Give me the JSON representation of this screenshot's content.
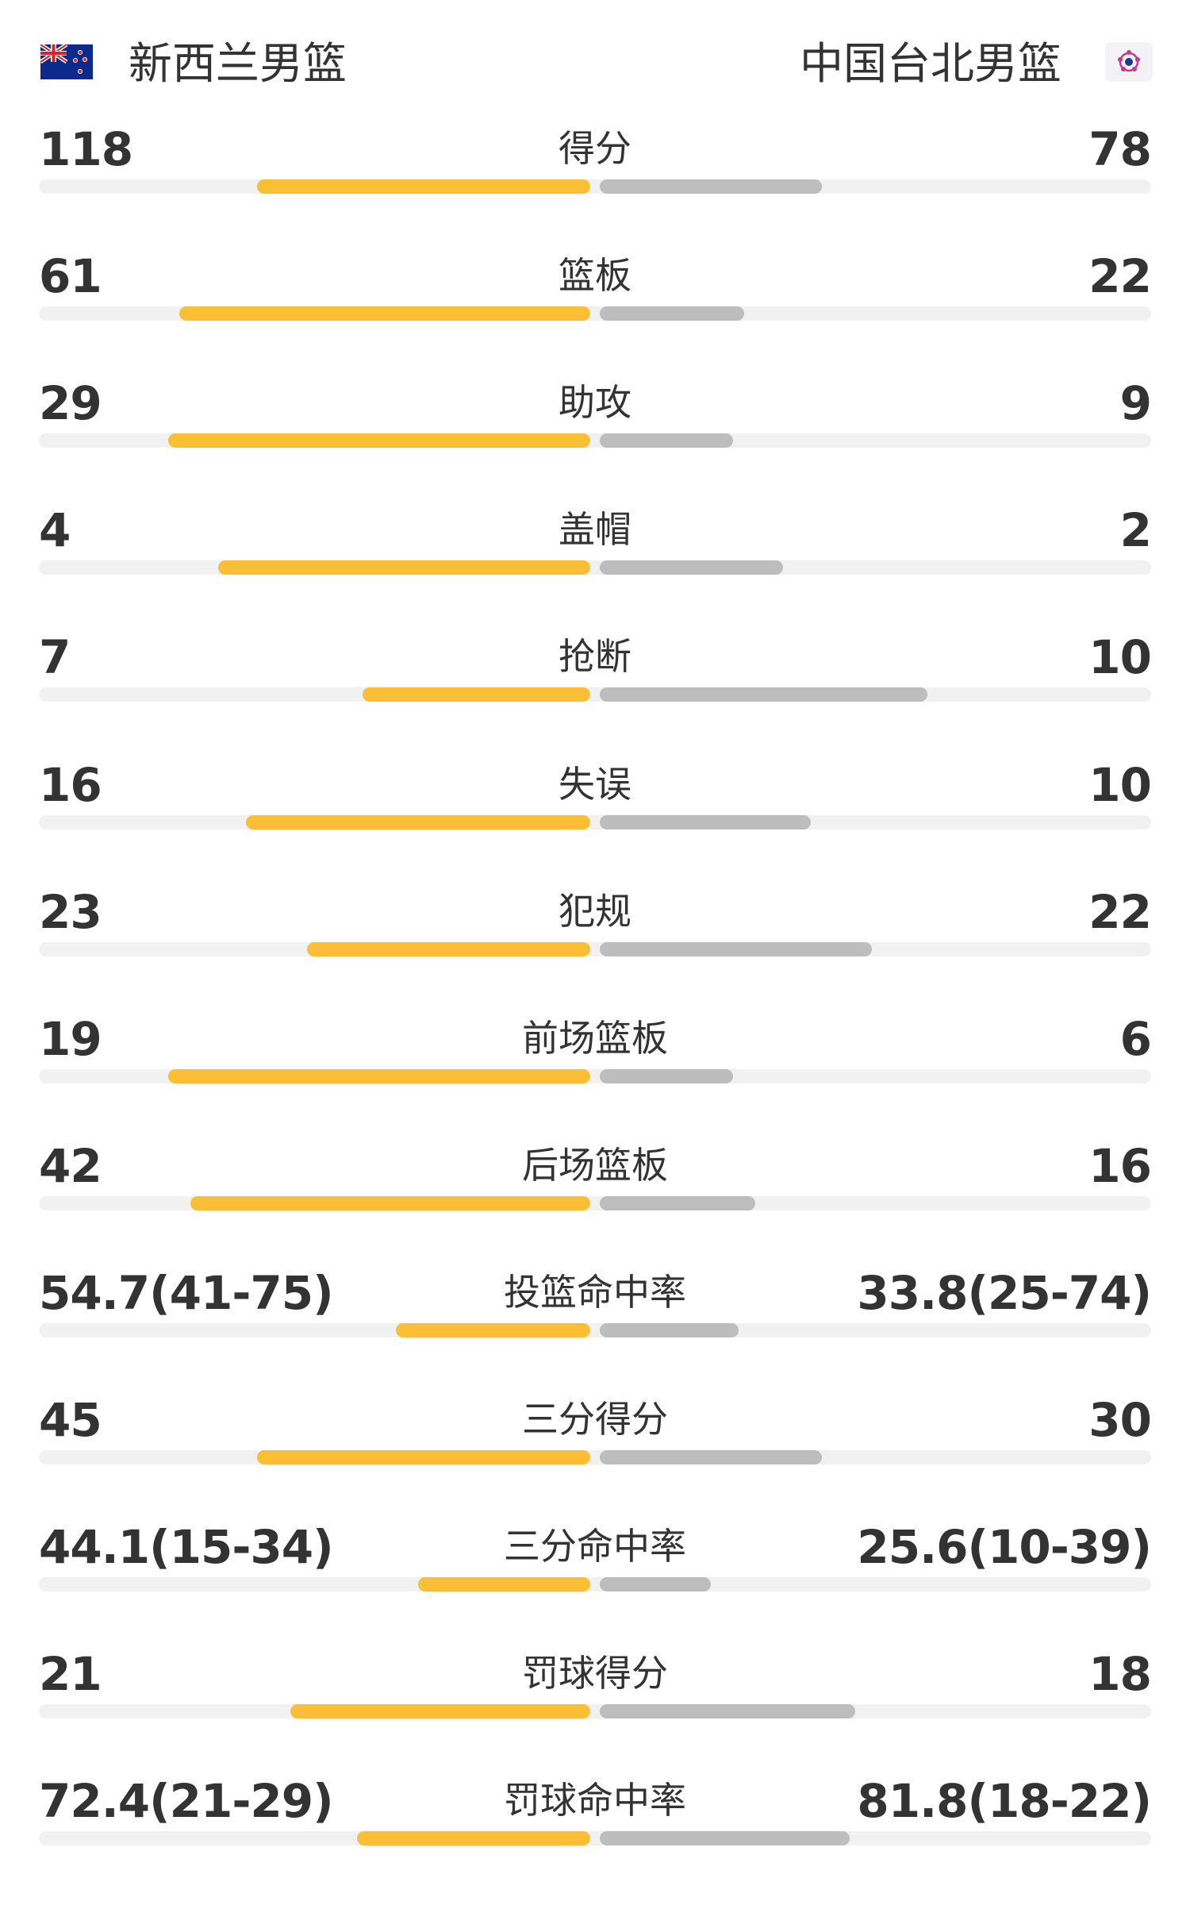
{
  "header": {
    "home_team": "新西兰男篮",
    "away_team": "中国台北男篮",
    "home_flag_icon": "new-zealand-flag-icon",
    "away_flag_icon": "chinese-taipei-flag-icon"
  },
  "colors": {
    "home_bar": "#fbbf36",
    "away_bar": "#bdbdbd",
    "track": "#f1f1f1",
    "text": "#333333"
  },
  "stats": [
    {
      "label": "得分",
      "home": "118",
      "away": "78",
      "home_share": 0.6,
      "away_share": 0.4
    },
    {
      "label": "篮板",
      "home": "61",
      "away": "22",
      "home_share": 0.74,
      "away_share": 0.26
    },
    {
      "label": "助攻",
      "home": "29",
      "away": "9",
      "home_share": 0.76,
      "away_share": 0.24
    },
    {
      "label": "盖帽",
      "home": "4",
      "away": "2",
      "home_share": 0.67,
      "away_share": 0.33
    },
    {
      "label": "抢断",
      "home": "7",
      "away": "10",
      "home_share": 0.41,
      "away_share": 0.59
    },
    {
      "label": "失误",
      "home": "16",
      "away": "10",
      "home_share": 0.62,
      "away_share": 0.38
    },
    {
      "label": "犯规",
      "home": "23",
      "away": "22",
      "home_share": 0.51,
      "away_share": 0.49
    },
    {
      "label": "前场篮板",
      "home": "19",
      "away": "6",
      "home_share": 0.76,
      "away_share": 0.24
    },
    {
      "label": "后场篮板",
      "home": "42",
      "away": "16",
      "home_share": 0.72,
      "away_share": 0.28
    },
    {
      "label": "投篮命中率",
      "home": "54.7(41-75)",
      "away": "33.8(25-74)",
      "home_share": 0.35,
      "away_share": 0.25
    },
    {
      "label": "三分得分",
      "home": "45",
      "away": "30",
      "home_share": 0.6,
      "away_share": 0.4
    },
    {
      "label": "三分命中率",
      "home": "44.1(15-34)",
      "away": "25.6(10-39)",
      "home_share": 0.31,
      "away_share": 0.2
    },
    {
      "label": "罚球得分",
      "home": "21",
      "away": "18",
      "home_share": 0.54,
      "away_share": 0.46
    },
    {
      "label": "罚球命中率",
      "home": "72.4(21-29)",
      "away": "81.8(18-22)",
      "home_share": 0.42,
      "away_share": 0.45
    }
  ]
}
